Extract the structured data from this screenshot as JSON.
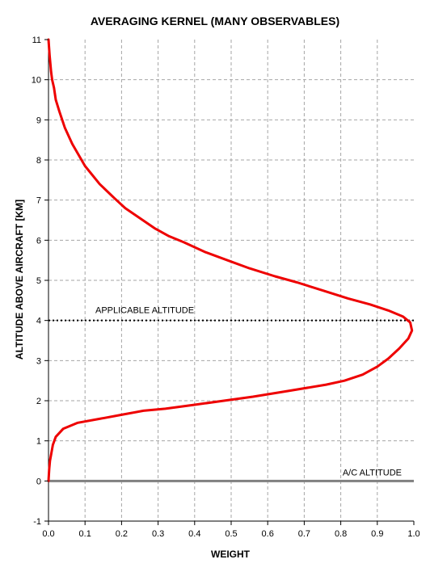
{
  "chart_data": {
    "type": "line",
    "title": "AVERAGING KERNEL (MANY OBSERVABLES)",
    "xlabel": "WEIGHT",
    "ylabel": "ALTITUDE ABOVE AIRCRAFT [KM]",
    "xlim": [
      0,
      1
    ],
    "ylim": [
      -1,
      11
    ],
    "xticks": [
      "0.0",
      "0.1",
      "0.2",
      "0.3",
      "0.4",
      "0.5",
      "0.6",
      "0.7",
      "0.8",
      "0.9",
      "1.0"
    ],
    "yticks": [
      "-1",
      "0",
      "1",
      "2",
      "3",
      "4",
      "5",
      "6",
      "7",
      "8",
      "9",
      "10",
      "11"
    ],
    "grid": true,
    "series": [
      {
        "color": "#ee0000",
        "x": [
          0.0,
          0.002,
          0.004,
          0.008,
          0.01,
          0.012,
          0.02,
          0.04,
          0.08,
          0.14,
          0.2,
          0.26,
          0.32,
          0.4,
          0.48,
          0.56,
          0.66,
          0.76,
          0.81,
          0.86,
          0.9,
          0.93,
          0.96,
          0.985,
          0.995,
          0.99,
          0.97,
          0.93,
          0.88,
          0.82,
          0.75,
          0.68,
          0.62,
          0.55,
          0.49,
          0.43,
          0.37,
          0.33,
          0.29,
          0.25,
          0.21,
          0.18,
          0.14,
          0.1,
          0.065,
          0.045,
          0.03,
          0.02,
          0.015,
          0.01,
          0.007,
          0.005,
          0.003,
          0.0
        ],
        "y": [
          0.0,
          0.3,
          0.5,
          0.7,
          0.8,
          0.9,
          1.1,
          1.3,
          1.45,
          1.55,
          1.65,
          1.75,
          1.8,
          1.9,
          2.0,
          2.1,
          2.25,
          2.4,
          2.5,
          2.65,
          2.85,
          3.05,
          3.3,
          3.55,
          3.75,
          3.95,
          4.1,
          4.25,
          4.4,
          4.55,
          4.75,
          4.95,
          5.1,
          5.3,
          5.5,
          5.7,
          5.95,
          6.1,
          6.3,
          6.55,
          6.8,
          7.05,
          7.4,
          7.85,
          8.4,
          8.8,
          9.2,
          9.5,
          9.8,
          10.0,
          10.2,
          10.4,
          10.6,
          11.0
        ]
      }
    ],
    "reference_lines": [
      {
        "y": 4.0,
        "style": "dotted",
        "label": "APPLICABLE ALTITUDE"
      },
      {
        "y": 0.0,
        "style": "solid-gray",
        "label": "A/C ALTITUDE"
      }
    ]
  }
}
